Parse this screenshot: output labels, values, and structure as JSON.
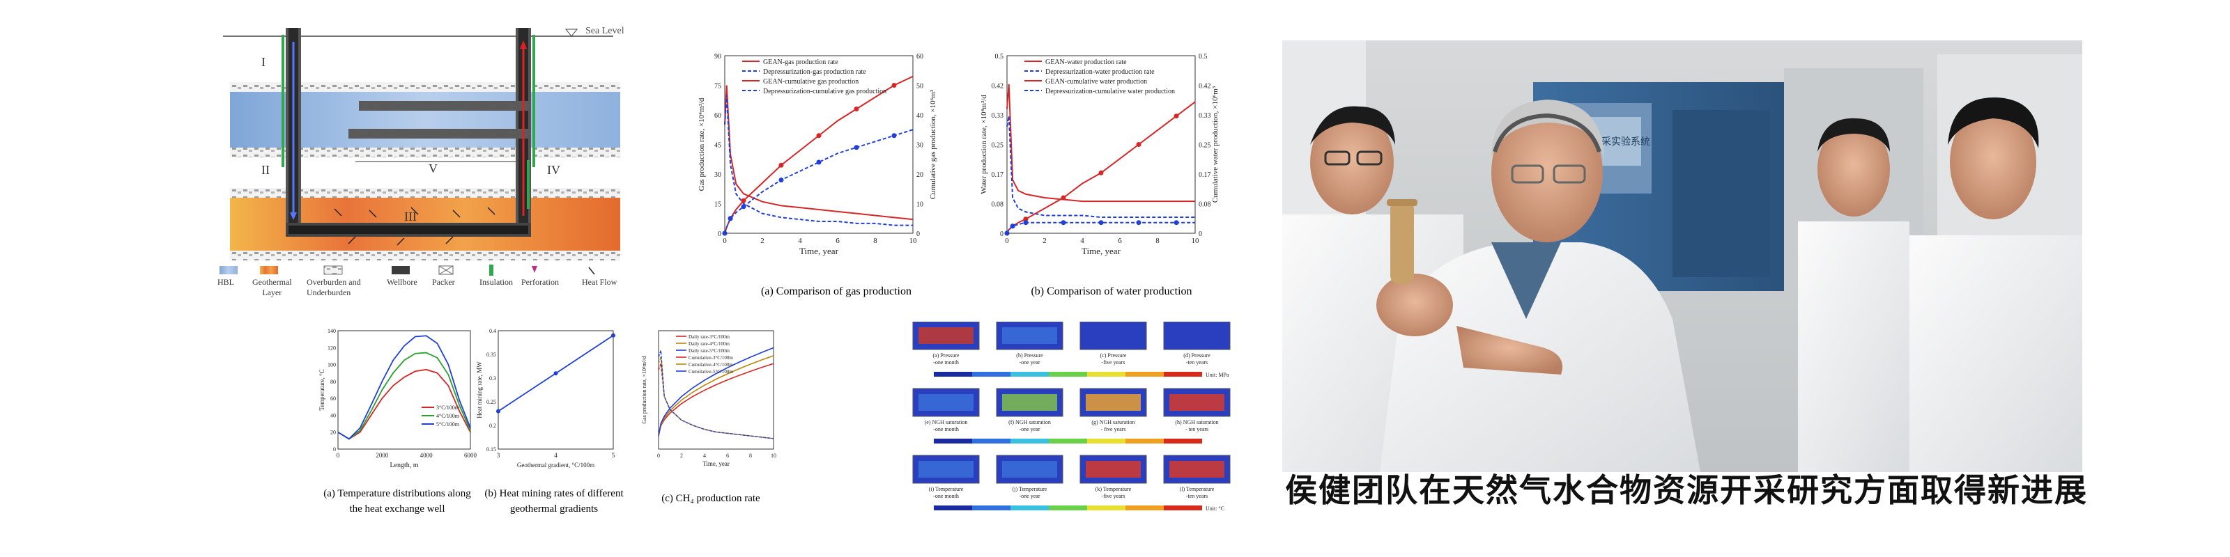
{
  "schematic": {
    "sea_level": "Sea Level",
    "zones": [
      "I",
      "II",
      "III",
      "IV",
      "V"
    ],
    "legend": [
      {
        "label": "HBL"
      },
      {
        "label": "Geothermal\nLayer"
      },
      {
        "label": "Overburden and\nUnderburden"
      },
      {
        "label": "Wellbore"
      },
      {
        "label": "Packer"
      },
      {
        "label": "Insulation"
      },
      {
        "label": "Perforation"
      },
      {
        "label": "Heat Flow"
      }
    ]
  },
  "gas_chart": {
    "caption": "(a) Comparison of gas production",
    "xlabel": "Time, year",
    "ylabel_left": "Gas production rate, ×10⁴m³/d",
    "ylabel_right": "Cumulative gas production, ×10⁶m³",
    "legend": [
      "GEAN-gas production rate",
      "Depressurization-gas production rate",
      "GEAN-cumulative gas production",
      "Depressurization-cumulative gas production"
    ]
  },
  "water_chart": {
    "caption": "(b) Comparison of water production",
    "xlabel": "Time, year",
    "ylabel_left": "Water production rate, ×10⁴m³/d",
    "ylabel_right": "Cumulative water production, ×10⁶m³",
    "legend": [
      "GEAN-water production rate",
      "Depressurization-water production rate",
      "GEAN-cumulative water production",
      "Depressurization-cumulative water production"
    ]
  },
  "temp_chart": {
    "caption": "(a) Temperature distributions along\nthe heat exchange well",
    "xlabel": "Length, m",
    "ylabel": "Temperature, °C",
    "legend": [
      "3°C/100m",
      "4°C/100m",
      "5°C/100m"
    ]
  },
  "heat_chart": {
    "caption": "(b) Heat mining rates of different\ngeothermal gradients",
    "xlabel": "Geothermal gradient, °C/100m",
    "ylabel": "Heat mining rate, MW"
  },
  "ch4_chart": {
    "caption": "(c) CH₄ production rate",
    "xlabel": "Time, year",
    "ylabel_left": "Gas production rate, ×10⁴m³/d",
    "legend": [
      "Daily rate-3°C/100m",
      "Daily rate-4°C/100m",
      "Daily rate-5°C/100m",
      "Cumulative-3°C/100m",
      "Cumulative-4°C/100m",
      "Cumulative-5°C/100m"
    ]
  },
  "contours": {
    "rows": [
      [
        "(a) Pressure\n-one month",
        "(b) Pressure\n-one year",
        "(c) Pressure\n-five years",
        "(d) Pressure\n-ten years"
      ],
      [
        "(e) NGH saturation\n-one month",
        "(f) NGH saturation\n-one year",
        "(g) NGH saturation\n- five years",
        "(h) NGH saturation\n- ten years"
      ],
      [
        "(i) Temperature\n-one month",
        "(j) Temperature\n-one year",
        "(k) Temperature\n-five years",
        "(l) Temperature\n-ten years"
      ]
    ],
    "units": [
      "Unit: MPa",
      "",
      "Unit: °C"
    ]
  },
  "photo": {
    "screen_text": "水合物开采实验系统"
  },
  "title": "侯健团队在天然气水合物资源开采研究方面取得新进展",
  "chart_data": [
    {
      "type": "line",
      "title": "",
      "xlabel": "Time, year",
      "ylabel": "Gas production rate, ×10⁴m³/d",
      "xlim": [
        0,
        10
      ],
      "ylim": [
        0,
        90
      ],
      "y2lim": [
        0,
        60
      ],
      "x": [
        0,
        0.1,
        0.3,
        0.6,
        1,
        2,
        3,
        4,
        5,
        6,
        7,
        8,
        9,
        10
      ],
      "series": [
        {
          "name": "GEAN-gas production rate",
          "values": [
            55,
            75,
            40,
            25,
            20,
            16,
            14,
            13,
            12,
            11,
            10,
            9,
            8,
            7
          ]
        },
        {
          "name": "Depressurization-gas production rate",
          "values": [
            55,
            70,
            35,
            20,
            15,
            10,
            8,
            7,
            6,
            6,
            5,
            5,
            4,
            4
          ]
        },
        {
          "name": "GEAN-cumulative gas production",
          "axis": "right",
          "values": [
            0,
            2,
            5,
            8,
            11,
            17,
            23,
            28,
            33,
            38,
            42,
            46,
            50,
            53
          ]
        },
        {
          "name": "Depressurization-cumulative gas production",
          "axis": "right",
          "values": [
            0,
            2,
            5,
            7,
            9,
            14,
            18,
            21,
            24,
            27,
            29,
            31,
            33,
            35
          ]
        }
      ]
    },
    {
      "type": "line",
      "title": "",
      "xlabel": "Time, year",
      "ylabel": "Water production rate, ×10⁴m³/d",
      "xlim": [
        0,
        10
      ],
      "ylim": [
        0,
        0.5
      ],
      "y2lim": [
        0,
        0.5
      ],
      "x": [
        0,
        0.1,
        0.3,
        0.6,
        1,
        2,
        3,
        4,
        5,
        6,
        7,
        8,
        9,
        10
      ],
      "series": [
        {
          "name": "GEAN-water production rate",
          "values": [
            0.35,
            0.42,
            0.15,
            0.12,
            0.11,
            0.1,
            0.095,
            0.09,
            0.09,
            0.09,
            0.09,
            0.09,
            0.09,
            0.09
          ]
        },
        {
          "name": "Depressurization-water production rate",
          "values": [
            0.3,
            0.33,
            0.1,
            0.07,
            0.06,
            0.05,
            0.05,
            0.05,
            0.045,
            0.045,
            0.045,
            0.045,
            0.045,
            0.045
          ]
        },
        {
          "name": "GEAN-cumulative water production",
          "axis": "right",
          "values": [
            0,
            0.01,
            0.02,
            0.03,
            0.04,
            0.07,
            0.1,
            0.14,
            0.17,
            0.21,
            0.25,
            0.29,
            0.33,
            0.37
          ]
        },
        {
          "name": "Depressurization-cumulative water production",
          "axis": "right",
          "values": [
            0,
            0.01,
            0.02,
            0.025,
            0.03,
            0.03,
            0.03,
            0.03,
            0.03,
            0.03,
            0.03,
            0.03,
            0.03,
            0.03
          ]
        }
      ]
    },
    {
      "type": "line",
      "title": "",
      "xlabel": "Length, m",
      "ylabel": "Temperature, °C",
      "xlim": [
        0,
        6000
      ],
      "ylim": [
        0,
        140
      ],
      "x": [
        0,
        500,
        1000,
        1500,
        2000,
        2500,
        3000,
        3500,
        4000,
        4500,
        5000,
        5500,
        6000
      ],
      "series": [
        {
          "name": "3°C/100m",
          "values": [
            20,
            12,
            20,
            40,
            60,
            75,
            85,
            92,
            94,
            90,
            75,
            45,
            20
          ]
        },
        {
          "name": "4°C/100m",
          "values": [
            20,
            12,
            22,
            45,
            70,
            90,
            105,
            113,
            114,
            108,
            88,
            52,
            22
          ]
        },
        {
          "name": "5°C/100m",
          "values": [
            20,
            12,
            25,
            52,
            80,
            105,
            122,
            133,
            134,
            125,
            100,
            58,
            25
          ]
        }
      ]
    },
    {
      "type": "line",
      "title": "",
      "xlabel": "Geothermal gradient, °C/100m",
      "ylabel": "Heat mining rate, MW",
      "xlim": [
        3,
        5
      ],
      "ylim": [
        0.15,
        0.4
      ],
      "x": [
        3,
        4,
        5
      ],
      "series": [
        {
          "name": "",
          "values": [
            0.23,
            0.31,
            0.39
          ]
        }
      ]
    }
  ]
}
